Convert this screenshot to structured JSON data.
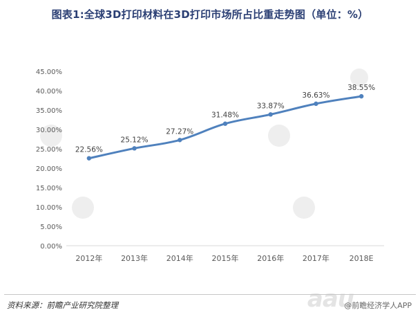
{
  "title": "图表1:全球3D打印材料在3D打印市场所占比重走势图（单位：%）",
  "source": "资料来源：前瞻产业研究院整理",
  "credit": "@前瞻经济学人APP",
  "brand_mark": "aau",
  "colors": {
    "line": "#4f81bd",
    "title": "#2b3f74",
    "grid": "#d9d9d9"
  },
  "chart_data": {
    "type": "line",
    "title": "图表1:全球3D打印材料在3D打印市场所占比重走势图（单位：%）",
    "categories": [
      "2012年",
      "2013年",
      "2014年",
      "2015年",
      "2016年",
      "2017年",
      "2018E"
    ],
    "series": [
      {
        "values": [
          22.56,
          25.12,
          27.27,
          31.48,
          33.87,
          36.63,
          38.55
        ]
      }
    ],
    "data_labels": [
      "22.56%",
      "25.12%",
      "27.27%",
      "31.48%",
      "33.87%",
      "36.63%",
      "38.55%"
    ],
    "y_ticks": [
      "0.00%",
      "5.00%",
      "10.00%",
      "15.00%",
      "20.00%",
      "25.00%",
      "30.00%",
      "35.00%",
      "40.00%",
      "45.00%"
    ],
    "ylim": [
      0,
      45
    ],
    "grid": false,
    "legend": "none",
    "xlabel": "",
    "ylabel": ""
  }
}
